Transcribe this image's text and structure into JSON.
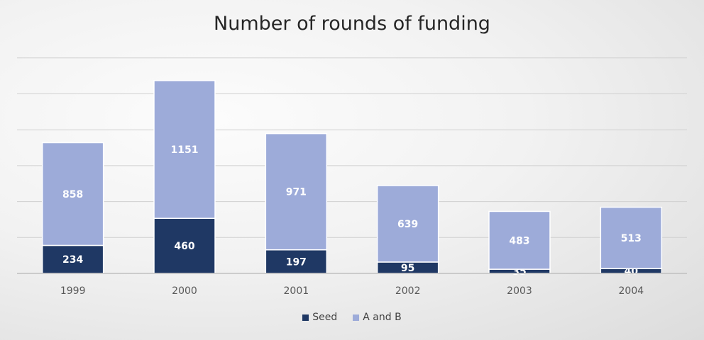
{
  "chart_data": {
    "type": "bar",
    "stacked": true,
    "title": "Number of rounds of funding",
    "xlabel": "",
    "ylabel": "",
    "categories": [
      "1999",
      "2000",
      "2001",
      "2002",
      "2003",
      "2004"
    ],
    "series": [
      {
        "name": "Seed",
        "values": [
          234,
          460,
          197,
          95,
          35,
          40
        ],
        "color": "#1f3864"
      },
      {
        "name": "A and B",
        "values": [
          858,
          1151,
          971,
          639,
          483,
          513
        ],
        "color": "#9dabd9"
      }
    ],
    "ylim": [
      0,
      1800
    ],
    "grid": true,
    "legend": "bottom",
    "data_labels": true
  }
}
